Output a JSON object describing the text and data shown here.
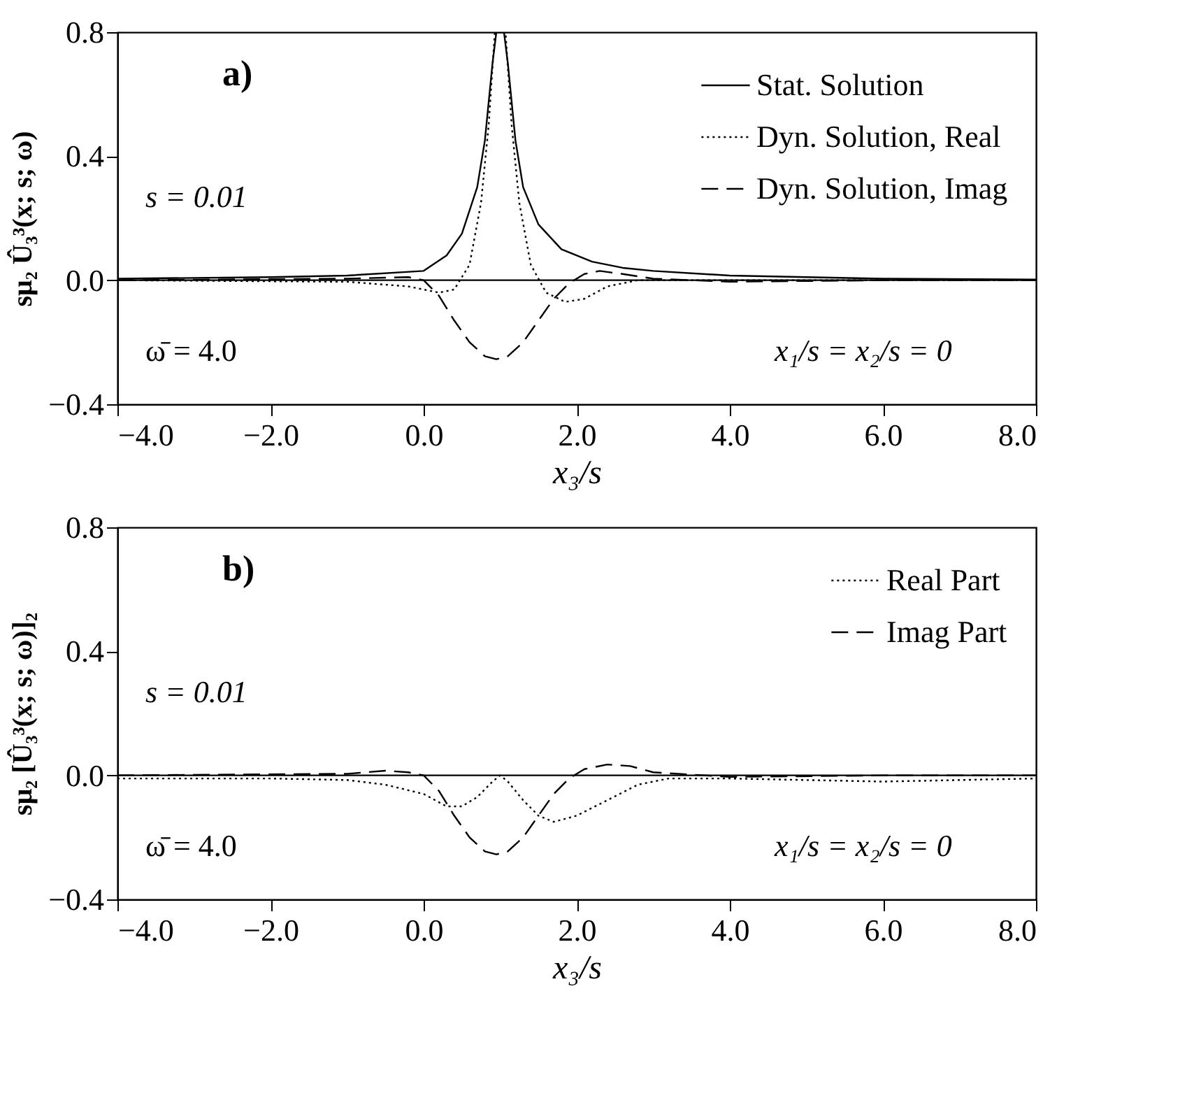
{
  "chart_data": [
    {
      "type": "line",
      "ylabel": "sμ₂ Û₃³(x; s; ω)",
      "xlabel": "x₃/s",
      "xlim": [
        -4,
        8
      ],
      "ylim": [
        -0.4,
        0.8
      ],
      "xticks": [
        {
          "value": -4,
          "label": "−4.0"
        },
        {
          "value": -2,
          "label": "−2.0"
        },
        {
          "value": 0,
          "label": "0.0"
        },
        {
          "value": 2,
          "label": "2.0"
        },
        {
          "value": 4,
          "label": "4.0"
        },
        {
          "value": 6,
          "label": "6.0"
        },
        {
          "value": 8,
          "label": "8.0"
        }
      ],
      "yticks": [
        {
          "value": -0.4,
          "label": "−0.4"
        },
        {
          "value": 0,
          "label": "0.0"
        },
        {
          "value": 0.4,
          "label": "0.4"
        },
        {
          "value": 0.8,
          "label": "0.8"
        }
      ],
      "legend": "top right",
      "marker": "none",
      "grid": false,
      "ref_lines": [
        {
          "axis": "y",
          "value": 0,
          "color": "#000000",
          "line_style": "solid"
        }
      ],
      "annotations": [
        "a)",
        "s = 0.01",
        "ω̄ = 4.0",
        "x₁/s = x₂/s = 0"
      ],
      "series": [
        {
          "name": "Stat. Solution",
          "color": "#000000",
          "line_style": "solid",
          "x": [
            -4,
            -2,
            -1,
            0,
            0.3,
            0.5,
            0.7,
            0.8,
            0.9,
            0.95,
            1.05,
            1.1,
            1.2,
            1.3,
            1.5,
            1.8,
            2.2,
            2.6,
            3,
            4,
            6,
            8
          ],
          "values": [
            0.005,
            0.01,
            0.015,
            0.03,
            0.08,
            0.15,
            0.3,
            0.45,
            0.7,
            0.8,
            0.8,
            0.7,
            0.45,
            0.3,
            0.18,
            0.1,
            0.06,
            0.04,
            0.03,
            0.015,
            0.005,
            0.002
          ]
        },
        {
          "name": "Dyn. Solution, Real",
          "color": "#000000",
          "line_style": "dotted",
          "x": [
            -4,
            -1,
            -0.2,
            0.2,
            0.4,
            0.6,
            0.75,
            0.85,
            0.93,
            1.07,
            1.15,
            1.25,
            1.4,
            1.6,
            1.85,
            2.1,
            2.4,
            2.8,
            4,
            8
          ],
          "values": [
            0,
            -0.005,
            -0.02,
            -0.04,
            -0.03,
            0.05,
            0.25,
            0.5,
            0.8,
            0.8,
            0.5,
            0.25,
            0.05,
            -0.04,
            -0.07,
            -0.06,
            -0.02,
            0,
            0,
            0
          ]
        },
        {
          "name": "Dyn. Solution, Imag",
          "color": "#000000",
          "line_style": "dashed",
          "x": [
            -4,
            -1,
            -0.2,
            0,
            0.2,
            0.4,
            0.6,
            0.8,
            0.95,
            1.1,
            1.3,
            1.5,
            1.7,
            1.9,
            2.1,
            2.3,
            2.6,
            3,
            4,
            6,
            8
          ],
          "values": [
            0,
            0.005,
            0.01,
            0,
            -0.05,
            -0.13,
            -0.2,
            -0.245,
            -0.255,
            -0.245,
            -0.2,
            -0.13,
            -0.06,
            -0.01,
            0.02,
            0.03,
            0.02,
            0.005,
            -0.005,
            0,
            0
          ]
        }
      ]
    },
    {
      "type": "line",
      "ylabel": "sμ₂ [Û₃³(x; s; ω)]₂",
      "xlabel": "x₃/s",
      "xlim": [
        -4,
        8
      ],
      "ylim": [
        -0.4,
        0.8
      ],
      "xticks": [
        {
          "value": -4,
          "label": "−4.0"
        },
        {
          "value": -2,
          "label": "−2.0"
        },
        {
          "value": 0,
          "label": "0.0"
        },
        {
          "value": 2,
          "label": "2.0"
        },
        {
          "value": 4,
          "label": "4.0"
        },
        {
          "value": 6,
          "label": "6.0"
        },
        {
          "value": 8,
          "label": "8.0"
        }
      ],
      "yticks": [
        {
          "value": -0.4,
          "label": "−0.4"
        },
        {
          "value": 0,
          "label": "0.0"
        },
        {
          "value": 0.4,
          "label": "0.4"
        },
        {
          "value": 0.8,
          "label": "0.8"
        }
      ],
      "legend": "top right",
      "marker": "none",
      "grid": false,
      "ref_lines": [
        {
          "axis": "y",
          "value": 0,
          "color": "#000000",
          "line_style": "solid"
        }
      ],
      "annotations": [
        "b)",
        "s = 0.01",
        "ω̄ = 4.0",
        "x₁/s = x₂/s = 0"
      ],
      "series": [
        {
          "name": "Real Part",
          "color": "#000000",
          "line_style": "dotted",
          "x": [
            -4,
            -2,
            -1,
            -0.5,
            0,
            0.3,
            0.5,
            0.7,
            0.9,
            1,
            1.1,
            1.3,
            1.5,
            1.7,
            2,
            2.4,
            2.8,
            3.2,
            4,
            6,
            8
          ],
          "values": [
            -0.01,
            -0.01,
            -0.015,
            -0.03,
            -0.06,
            -0.1,
            -0.1,
            -0.07,
            -0.02,
            0,
            -0.02,
            -0.08,
            -0.13,
            -0.15,
            -0.13,
            -0.08,
            -0.03,
            -0.01,
            -0.01,
            -0.02,
            -0.01
          ]
        },
        {
          "name": "Imag Part",
          "color": "#000000",
          "line_style": "dashed",
          "x": [
            -4,
            -1,
            -0.5,
            -0.2,
            0,
            0.2,
            0.4,
            0.6,
            0.8,
            0.95,
            1.1,
            1.3,
            1.5,
            1.7,
            1.9,
            2.1,
            2.4,
            2.7,
            3,
            4,
            6,
            8
          ],
          "values": [
            0,
            0.005,
            0.015,
            0.01,
            0,
            -0.05,
            -0.13,
            -0.2,
            -0.245,
            -0.255,
            -0.245,
            -0.2,
            -0.13,
            -0.06,
            -0.01,
            0.02,
            0.035,
            0.03,
            0.01,
            -0.005,
            0,
            0
          ]
        }
      ]
    }
  ]
}
